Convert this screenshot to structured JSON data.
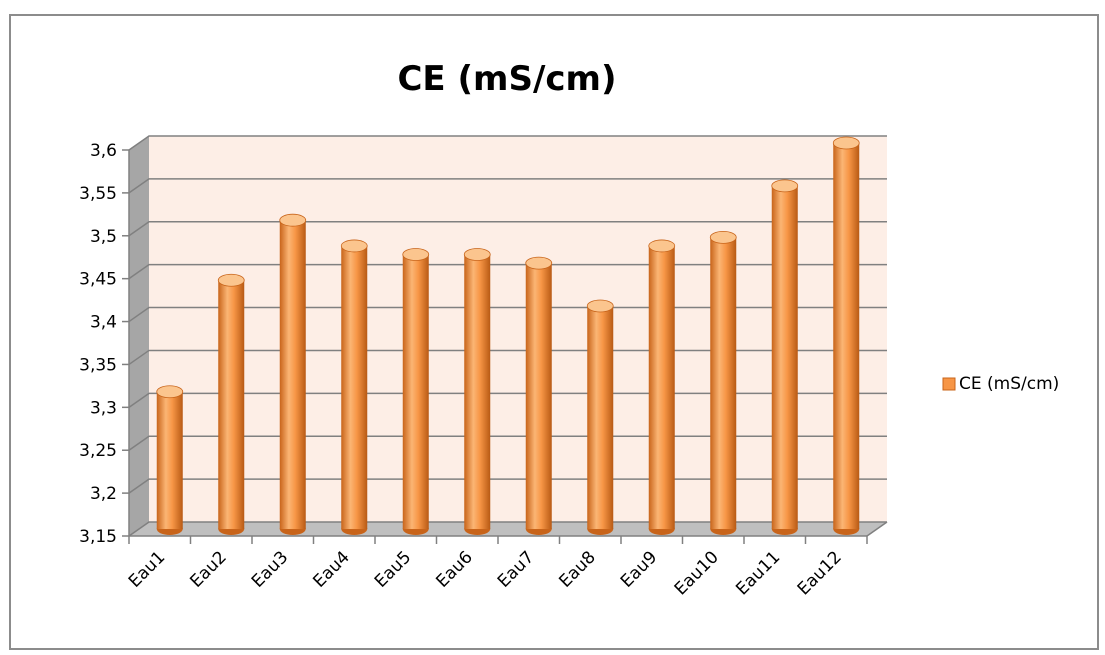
{
  "chart_data": {
    "type": "bar",
    "title": "CE (mS/cm)",
    "xlabel": "",
    "ylabel": "",
    "categories": [
      "Eau1",
      "Eau2",
      "Eau3",
      "Eau4",
      "Eau5",
      "Eau6",
      "Eau7",
      "Eau8",
      "Eau9",
      "Eau10",
      "Eau11",
      "Eau12"
    ],
    "series": [
      {
        "name": "CE (mS/cm)",
        "values": [
          3.31,
          3.44,
          3.51,
          3.48,
          3.47,
          3.47,
          3.46,
          3.41,
          3.48,
          3.49,
          3.55,
          3.6
        ]
      }
    ],
    "ylim": [
      3.15,
      3.6
    ],
    "yticks": [
      "3,15",
      "3,2",
      "3,25",
      "3,3",
      "3,35",
      "3,4",
      "3,45",
      "3,5",
      "3,55",
      "3,6"
    ],
    "grid": true,
    "legend_position": "right",
    "colors": {
      "bar": "#f79646",
      "bar_dark": "#c8641a",
      "bar_light": "#fbc58e",
      "plot_bg": "#fdeee6",
      "wall": "#a6a6a6",
      "grid": "#808080"
    }
  }
}
